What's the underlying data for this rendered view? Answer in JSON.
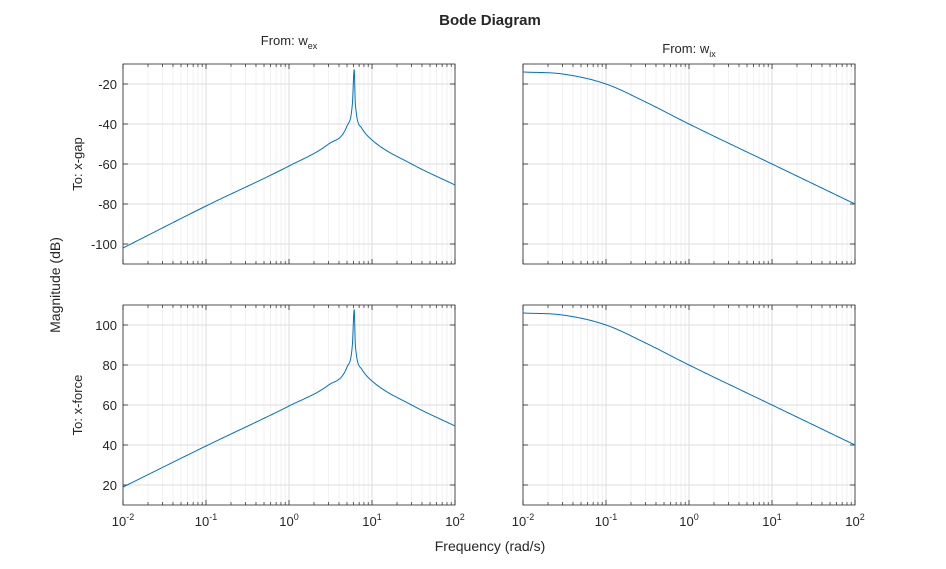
{
  "figure": {
    "title": "Bode Diagram",
    "xlabel": "Frequency (rad/s)",
    "ylabel": "Magnitude (dB)",
    "from_prefix": "From:",
    "inputs": [
      {
        "base": "w",
        "sub": "ex"
      },
      {
        "base": "w",
        "sub": "ix"
      }
    ],
    "outputs": [
      "To: x-gap",
      "To: x-force"
    ],
    "line_color": "#0072BD"
  },
  "chart_data": {
    "type": "line",
    "title": "Bode Diagram",
    "xlabel": "Frequency (rad/s)",
    "ylabel": "Magnitude (dB)",
    "xscale": "log",
    "xlim": [
      0.01,
      100
    ],
    "xticks": [
      0.01,
      0.1,
      1,
      10,
      100
    ],
    "xtick_labels": [
      {
        "base": "10",
        "exp": "-2"
      },
      {
        "base": "10",
        "exp": "-1"
      },
      {
        "base": "10",
        "exp": "0"
      },
      {
        "base": "10",
        "exp": "1"
      },
      {
        "base": "10",
        "exp": "2"
      }
    ],
    "grid": true,
    "rows": [
      {
        "output": "To: x-gap",
        "ylim": [
          -110,
          -10
        ],
        "yticks": [
          -100,
          -80,
          -60,
          -40,
          -20
        ]
      },
      {
        "output": "To: x-force",
        "ylim": [
          10,
          110
        ],
        "yticks": [
          20,
          40,
          60,
          80,
          100
        ]
      }
    ],
    "series": [
      {
        "row": 0,
        "col": 0,
        "x": [
          0.01,
          0.1,
          1,
          3,
          5,
          5.8,
          6.1,
          6.3,
          7.5,
          10,
          30,
          100
        ],
        "y": [
          -102,
          -81,
          -61,
          -50,
          -41,
          -30,
          -13,
          -30,
          -42,
          -48,
          -60,
          -70.5
        ]
      },
      {
        "row": 0,
        "col": 1,
        "x": [
          0.01,
          0.03,
          0.1,
          0.3,
          1,
          10,
          100
        ],
        "y": [
          -14,
          -15,
          -20,
          -29,
          -40,
          -60,
          -80
        ]
      },
      {
        "row": 1,
        "col": 0,
        "x": [
          0.01,
          0.1,
          1,
          3,
          5,
          5.8,
          6.1,
          6.3,
          7.5,
          10,
          30,
          100
        ],
        "y": [
          19,
          39.5,
          59.5,
          70,
          79,
          90,
          107.5,
          90,
          78,
          72,
          60,
          49.5
        ]
      },
      {
        "row": 1,
        "col": 1,
        "x": [
          0.01,
          0.03,
          0.1,
          0.3,
          1,
          10,
          100
        ],
        "y": [
          106,
          105,
          100,
          91,
          80,
          60,
          40
        ]
      }
    ]
  }
}
